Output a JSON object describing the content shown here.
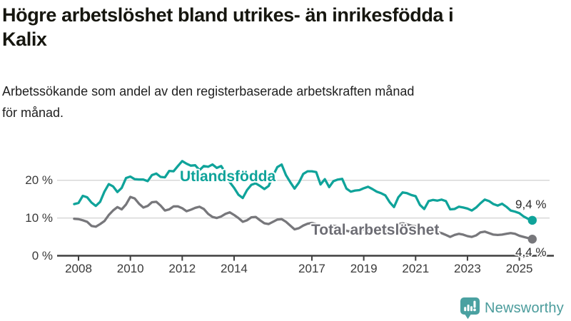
{
  "header": {
    "title": "Högre arbetslöshet bland utrikes- än inrikesfödda i Kalix",
    "title_lines": [
      "Högre arbetslöshet bland utrikes- än inrikesfödda i",
      "Kalix"
    ],
    "subtitle": "Arbetssökande som andel av den registerbaserade arbetskraften månad för månad.",
    "subtitle_lines": [
      "Arbetssökande som andel av den registerbaserade arbetskraften månad",
      "för månad."
    ]
  },
  "footer": {
    "brand": "Newsworthy",
    "brand_color": "#4b9c9c",
    "logo_icon": "speech-bubble-bar-chart-exclamation"
  },
  "chart_data": {
    "type": "line",
    "title": "Högre arbetslöshet bland utrikes- än inrikesfödda i Kalix",
    "subtitle": "Arbetssökande som andel av den registerbaserade arbetskraften månad för månad.",
    "unit": "%",
    "x_start_year": 2007.833,
    "x_step_years": 0.16667,
    "x_end_year": 2025.5,
    "x_tick_years": [
      2008,
      2010,
      2012,
      2014,
      2017,
      2019,
      2021,
      2023,
      2025
    ],
    "x_tick_labels": [
      "2008",
      "2010",
      "2012",
      "2014",
      "2017",
      "2019",
      "2021",
      "2023",
      "2025"
    ],
    "y_ticks": [
      0,
      10,
      20
    ],
    "y_tick_labels": [
      "0 %",
      "10 %",
      "20 %"
    ],
    "ylim": [
      0,
      27
    ],
    "grid": "horizontal",
    "legend_position": "inline-labels",
    "axis_color": "#3f3f3f",
    "grid_color": "#d8d8d8",
    "series": [
      {
        "name": "Utlandsfödda",
        "color": "#0fa39a",
        "end_label": "9,4 %",
        "end_value": 9.4,
        "values": [
          13.7,
          14.0,
          15.9,
          15.5,
          14.1,
          13.2,
          14.3,
          17.0,
          19.0,
          18.4,
          16.9,
          18.0,
          20.6,
          21.0,
          20.3,
          20.2,
          20.2,
          19.8,
          21.4,
          21.8,
          20.9,
          20.8,
          22.5,
          22.4,
          23.8,
          25.1,
          24.4,
          23.9,
          24.0,
          22.7,
          23.8,
          23.6,
          24.2,
          23.3,
          23.8,
          22.0,
          19.5,
          18.0,
          16.2,
          15.3,
          17.4,
          18.8,
          19.2,
          18.5,
          17.7,
          18.5,
          21.2,
          23.5,
          24.2,
          21.4,
          19.5,
          17.8,
          19.4,
          21.7,
          22.4,
          22.4,
          22.2,
          18.9,
          20.3,
          18.2,
          19.8,
          20.2,
          20.4,
          17.8,
          17.0,
          17.3,
          17.4,
          17.9,
          18.3,
          17.7,
          17.0,
          16.6,
          16.0,
          14.2,
          12.9,
          15.5,
          16.8,
          16.6,
          16.1,
          15.8,
          13.5,
          12.4,
          14.5,
          14.8,
          14.6,
          14.9,
          14.5,
          12.3,
          12.4,
          13.0,
          12.8,
          12.5,
          12.0,
          12.8,
          13.9,
          14.9,
          14.5,
          13.7,
          13.3,
          13.8,
          13.0,
          12.0,
          11.7,
          11.3,
          10.4,
          9.8,
          9.4
        ]
      },
      {
        "name": "Total arbetslöshet",
        "color": "#77777b",
        "end_label": "4,4 %",
        "end_value": 4.4,
        "values": [
          9.8,
          9.7,
          9.4,
          9.0,
          7.9,
          7.7,
          8.4,
          9.2,
          10.8,
          12.0,
          12.9,
          12.3,
          13.6,
          15.6,
          15.2,
          13.8,
          12.8,
          13.2,
          14.2,
          14.3,
          13.3,
          12.0,
          12.3,
          13.1,
          13.1,
          12.6,
          11.8,
          12.2,
          12.7,
          13.0,
          12.4,
          11.1,
          10.3,
          10.0,
          10.4,
          11.1,
          11.5,
          10.8,
          10.0,
          9.0,
          9.4,
          10.2,
          10.3,
          9.4,
          8.6,
          8.4,
          9.0,
          9.6,
          9.7,
          9.0,
          8.0,
          7.0,
          7.3,
          8.0,
          8.5,
          8.7,
          8.4,
          7.6,
          7.2,
          7.5,
          7.9,
          7.8,
          7.2,
          6.6,
          6.4,
          6.8,
          7.0,
          7.0,
          6.6,
          6.3,
          6.5,
          6.8,
          6.7,
          6.6,
          7.2,
          8.4,
          8.6,
          8.3,
          8.0,
          7.8,
          7.2,
          6.7,
          6.8,
          6.6,
          6.3,
          6.0,
          5.5,
          5.0,
          5.5,
          5.8,
          5.6,
          5.2,
          5.0,
          5.4,
          6.2,
          6.4,
          6.0,
          5.6,
          5.5,
          5.6,
          5.8,
          6.0,
          5.8,
          5.3,
          5.0,
          4.7,
          4.4
        ]
      }
    ]
  }
}
